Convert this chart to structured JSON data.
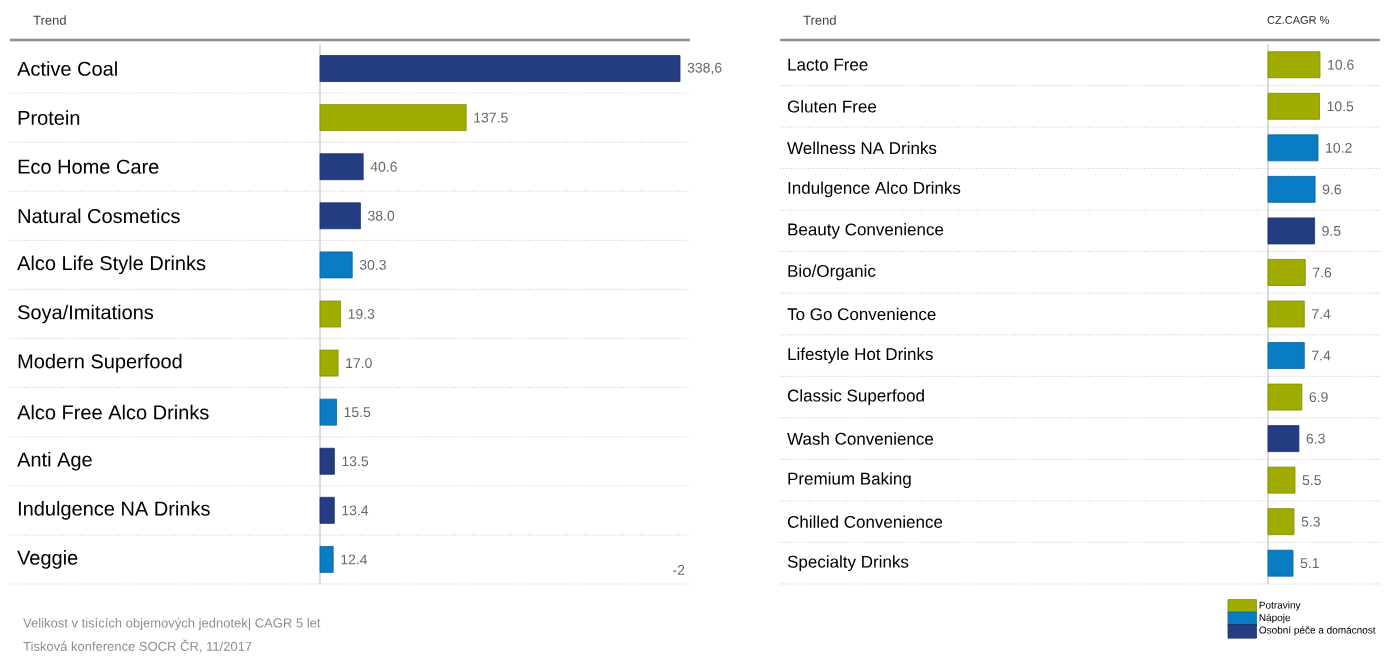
{
  "chart_data": [
    {
      "type": "bar",
      "orientation": "horizontal",
      "stacked": true,
      "ylabel": "Trend",
      "categories": [
        "Active Coal",
        "Protein",
        "Eco Home Care",
        "Natural Cosmetics",
        "Alco Life Style Drinks",
        "Soya/Imitations",
        "Modern Superfood",
        "Alco Free Alco Drinks",
        "Anti Age",
        "Indulgence NA Drinks",
        "Veggie"
      ],
      "series": [
        {
          "color": "#a0ac00",
          "values": [
            null,
            137.5,
            null,
            null,
            null,
            19.3,
            17.0,
            null,
            null,
            null,
            null
          ],
          "value_labels": [
            null,
            "137.5",
            null,
            null,
            null,
            "19.3",
            "17.0",
            null,
            null,
            null,
            null
          ]
        },
        {
          "color": "#0a7cc4",
          "values": [
            null,
            null,
            null,
            null,
            30.3,
            null,
            null,
            15.5,
            null,
            null,
            12.4
          ],
          "value_labels": [
            null,
            null,
            null,
            null,
            "30.3",
            null,
            null,
            "15.5",
            null,
            null,
            "12.4"
          ]
        },
        {
          "color": "#243c82",
          "values": [
            338.6,
            null,
            40.6,
            38.0,
            null,
            null,
            null,
            null,
            13.5,
            13.4,
            null
          ],
          "value_labels": [
            "338,6",
            null,
            "40.6",
            "38.0",
            null,
            null,
            null,
            null,
            "13.5",
            "13.4",
            null
          ]
        }
      ],
      "annotations": [
        "Velikost v tisících objemových jednotek| CAGR 5 let",
        "Tisková konference SOCR ČR, 11/2017",
        "-2"
      ]
    },
    {
      "type": "bar",
      "orientation": "horizontal",
      "stacked": true,
      "ylabel": "Trend",
      "xlabel": "CZ.CAGR %",
      "data_labels": true,
      "legend": "bottom right",
      "categories": [
        "Lacto Free",
        "Gluten Free",
        "Wellness NA Drinks",
        "Indulgence Alco Drinks",
        "Beauty Convenience",
        "Bio/Organic",
        "To Go Convenience",
        "Lifestyle Hot Drinks",
        "Classic Superfood",
        "Wash Convenience",
        "Premium Baking",
        "Chilled Convenience",
        "Specialty Drinks"
      ],
      "series": [
        {
          "name": "Potraviny",
          "color": "#a0ac00",
          "values": [
            10.6,
            10.5,
            null,
            null,
            null,
            7.6,
            7.4,
            null,
            6.9,
            null,
            5.5,
            5.3,
            null
          ]
        },
        {
          "name": "Nápoje",
          "color": "#0a7cc4",
          "values": [
            null,
            null,
            10.2,
            9.6,
            null,
            null,
            null,
            7.4,
            null,
            null,
            null,
            null,
            5.1
          ]
        },
        {
          "name": "Osobní péče a domácnost",
          "color": "#243c82",
          "values": [
            null,
            null,
            null,
            null,
            9.5,
            null,
            null,
            null,
            null,
            6.3,
            null,
            null,
            null
          ]
        }
      ]
    }
  ]
}
